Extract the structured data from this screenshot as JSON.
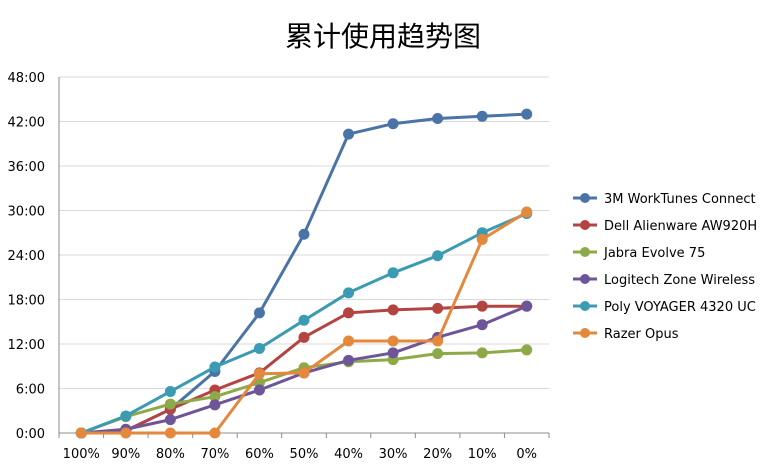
{
  "chart_data": {
    "type": "line",
    "title": "累计使用趋势图",
    "categories": [
      "100%",
      "90%",
      "80%",
      "70%",
      "60%",
      "50%",
      "40%",
      "30%",
      "20%",
      "10%",
      "0%"
    ],
    "y_ticks": [
      "0:00",
      "6:00",
      "12:00",
      "18:00",
      "24:00",
      "30:00",
      "36:00",
      "42:00",
      "48:00"
    ],
    "ylim": [
      0,
      48
    ],
    "y_unit": "hours",
    "grid": "horizontal",
    "legend": "right",
    "series": [
      {
        "name": "3M WorkTunes Connect",
        "color": "#4a73a8",
        "values": [
          0,
          0.3,
          3.2,
          8.3,
          16.2,
          26.8,
          40.3,
          41.7,
          42.4,
          42.7,
          43
        ]
      },
      {
        "name": "Dell Alienware AW920H",
        "color": "#b34442",
        "values": [
          0,
          0.3,
          3.2,
          5.8,
          8.1,
          12.9,
          16.2,
          16.6,
          16.8,
          17.1,
          17.1
        ]
      },
      {
        "name": "Jabra Evolve 75",
        "color": "#8eaa48",
        "values": [
          0,
          2.2,
          3.9,
          4.9,
          6.8,
          8.8,
          9.6,
          9.9,
          10.7,
          10.8,
          11.2
        ]
      },
      {
        "name": "Logitech Zone Wireless",
        "color": "#6e559a",
        "values": [
          0,
          0.5,
          1.8,
          3.8,
          5.8,
          8.1,
          9.8,
          10.8,
          12.9,
          14.6,
          17.1
        ]
      },
      {
        "name": "Poly VOYAGER 4320 UC",
        "color": "#3a9bb2",
        "values": [
          0,
          2.3,
          5.6,
          8.9,
          11.4,
          15.2,
          18.9,
          21.6,
          23.9,
          27.0,
          29.6
        ]
      },
      {
        "name": "Razer Opus",
        "color": "#e3883d",
        "values": [
          0,
          0,
          0,
          0,
          8.0,
          8.1,
          12.4,
          12.4,
          12.4,
          26.1,
          29.8
        ]
      }
    ]
  }
}
